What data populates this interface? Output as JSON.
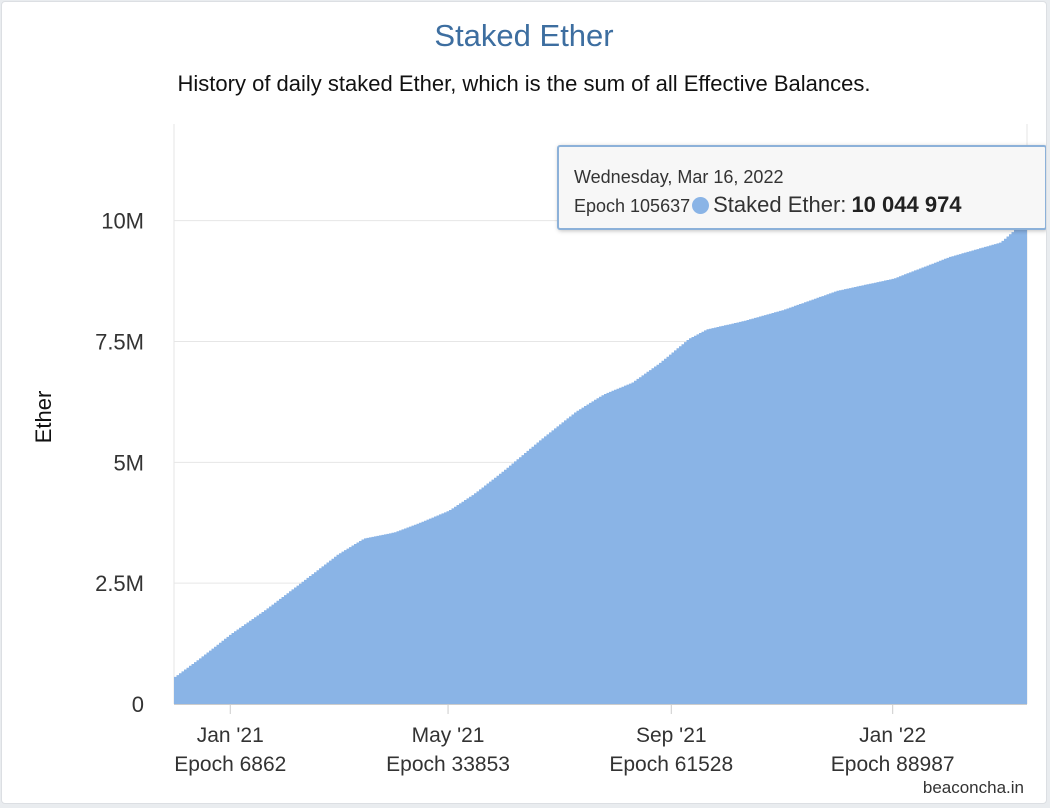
{
  "chart": {
    "title": "Staked Ether",
    "subtitle": "History of daily staked Ether, which is the sum of all Effective Balances.",
    "credits": "beaconcha.in"
  },
  "tooltip": {
    "date": "Wednesday, Mar 16, 2022",
    "epoch": "Epoch 105637",
    "series_label": "Staked Ether:",
    "value": "10 044 974"
  },
  "colors": {
    "series": "#8ab4e6",
    "title": "#3d6ea0",
    "grid": "#e6e6e6",
    "tooltip_border": "#8cb1d9"
  },
  "chart_data": {
    "type": "area",
    "title": "Staked Ether",
    "subtitle": "History of daily staked Ether, which is the sum of all Effective Balances.",
    "xlabel": "",
    "ylabel": "Ether",
    "xlim": [
      "2020-12-01",
      "2022-03-16"
    ],
    "ylim": [
      0,
      12000000
    ],
    "grid": true,
    "legend": "none",
    "y_ticks": [
      {
        "value": 0,
        "label": "0"
      },
      {
        "value": 2500000,
        "label": "2.5M"
      },
      {
        "value": 5000000,
        "label": "5M"
      },
      {
        "value": 7500000,
        "label": "7.5M"
      },
      {
        "value": 10000000,
        "label": "10M"
      }
    ],
    "x_ticks": [
      {
        "date": "2021-01-01",
        "label": "Jan '21",
        "epoch": "Epoch 6862"
      },
      {
        "date": "2021-05-01",
        "label": "May '21",
        "epoch": "Epoch 33853"
      },
      {
        "date": "2021-09-01",
        "label": "Sep '21",
        "epoch": "Epoch 61528"
      },
      {
        "date": "2022-01-01",
        "label": "Jan '22",
        "epoch": "Epoch 88987"
      }
    ],
    "series": [
      {
        "name": "Staked Ether",
        "points": [
          {
            "date": "2020-12-01",
            "value": 560000
          },
          {
            "date": "2020-12-15",
            "value": 950000
          },
          {
            "date": "2021-01-01",
            "value": 1450000
          },
          {
            "date": "2021-01-20",
            "value": 1950000
          },
          {
            "date": "2021-02-10",
            "value": 2550000
          },
          {
            "date": "2021-03-01",
            "value": 3100000
          },
          {
            "date": "2021-03-15",
            "value": 3420000
          },
          {
            "date": "2021-04-01",
            "value": 3550000
          },
          {
            "date": "2021-04-15",
            "value": 3750000
          },
          {
            "date": "2021-05-01",
            "value": 4000000
          },
          {
            "date": "2021-05-15",
            "value": 4350000
          },
          {
            "date": "2021-06-01",
            "value": 4850000
          },
          {
            "date": "2021-06-20",
            "value": 5450000
          },
          {
            "date": "2021-07-10",
            "value": 6050000
          },
          {
            "date": "2021-07-25",
            "value": 6400000
          },
          {
            "date": "2021-08-10",
            "value": 6650000
          },
          {
            "date": "2021-08-25",
            "value": 7050000
          },
          {
            "date": "2021-09-10",
            "value": 7550000
          },
          {
            "date": "2021-09-20",
            "value": 7750000
          },
          {
            "date": "2021-10-10",
            "value": 7920000
          },
          {
            "date": "2021-11-01",
            "value": 8150000
          },
          {
            "date": "2021-12-01",
            "value": 8550000
          },
          {
            "date": "2022-01-01",
            "value": 8800000
          },
          {
            "date": "2022-02-01",
            "value": 9250000
          },
          {
            "date": "2022-03-01",
            "value": 9550000
          },
          {
            "date": "2022-03-16",
            "value": 10044974
          }
        ]
      }
    ]
  }
}
